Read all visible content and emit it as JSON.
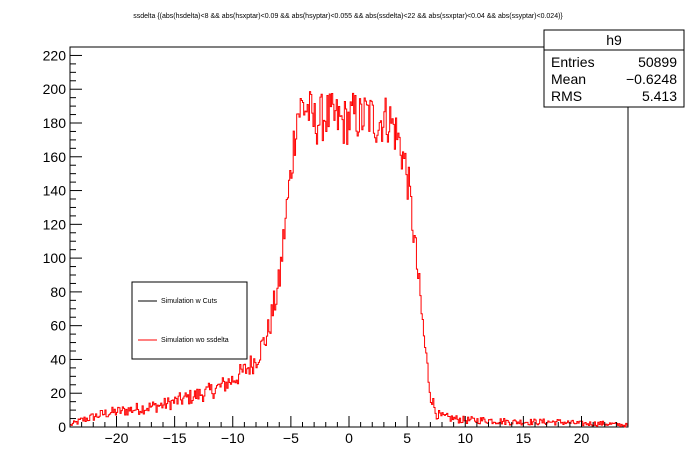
{
  "chart_data": {
    "type": "histogram",
    "title": "ssdelta {(abs(hsdelta)<8 && abs(hsxptar)<0.09 && abs(hsyptar)<0.055 && abs(ssdelta)<22 && abs(ssxptar)<0.04 && abs(ssyptar)<0.024)}",
    "xlabel": "",
    "ylabel": "",
    "xlim": [
      -24,
      24
    ],
    "ylim": [
      0,
      225
    ],
    "x_ticks": [
      -20,
      -15,
      -10,
      -5,
      0,
      5,
      10,
      15,
      20
    ],
    "y_ticks": [
      0,
      20,
      40,
      60,
      80,
      100,
      120,
      140,
      160,
      180,
      200,
      220
    ],
    "grid": false,
    "legend_position": "left-middle",
    "series": [
      {
        "name": "Simulation w Cuts",
        "color": "#000000",
        "x": [],
        "values": []
      },
      {
        "name": "Simulation wo ssdelta",
        "color": "#ff0000",
        "x": [
          -24,
          -23,
          -22,
          -21,
          -20,
          -19,
          -18,
          -17,
          -16,
          -15,
          -14,
          -13,
          -12,
          -11,
          -10,
          -9,
          -8,
          -7,
          -6,
          -5.5,
          -5,
          -4.5,
          -4,
          -3.5,
          -3,
          -2.5,
          -2,
          -1.5,
          -1,
          -0.5,
          0,
          0.5,
          1,
          1.5,
          2,
          2.5,
          3,
          3.5,
          4,
          4.5,
          5,
          5.5,
          6,
          6.5,
          7,
          7.5,
          8,
          9,
          10,
          12,
          14,
          16,
          18,
          20,
          22,
          24
        ],
        "values": [
          1,
          4,
          6,
          8,
          9,
          10,
          11,
          12,
          13,
          15,
          17,
          19,
          21,
          24,
          28,
          33,
          40,
          55,
          85,
          120,
          150,
          185,
          190,
          188,
          180,
          182,
          185,
          183,
          182,
          180,
          182,
          185,
          182,
          185,
          183,
          180,
          183,
          182,
          175,
          165,
          150,
          120,
          85,
          50,
          20,
          8,
          6,
          5,
          4,
          4,
          3,
          3,
          3,
          2,
          2,
          1
        ]
      }
    ]
  },
  "stats_box": {
    "title": "h9",
    "rows": [
      {
        "label": "Entries",
        "value": "50899"
      },
      {
        "label": "Mean",
        "value": "−0.6248"
      },
      {
        "label": "RMS",
        "value": "5.413"
      }
    ]
  }
}
